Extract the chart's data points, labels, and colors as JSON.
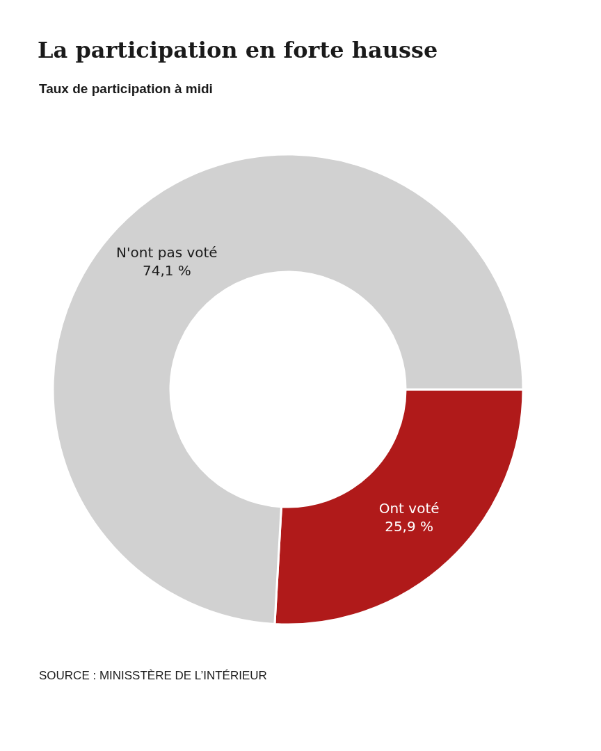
{
  "chart_data": {
    "type": "donut",
    "title": "La participation en forte hausse",
    "subtitle": "Taux de participation à midi",
    "categories": [
      "Ont voté",
      "N'ont pas voté"
    ],
    "values": [
      25.9,
      74.1
    ],
    "value_labels": [
      "25,9 %",
      "74,1 %"
    ],
    "colors": [
      "#b01a1a",
      "#d1d1d1"
    ],
    "annotations": [
      "SOURCE : MINISSTÈRE DE L’INTÉRIEUR"
    ],
    "legend": false
  }
}
